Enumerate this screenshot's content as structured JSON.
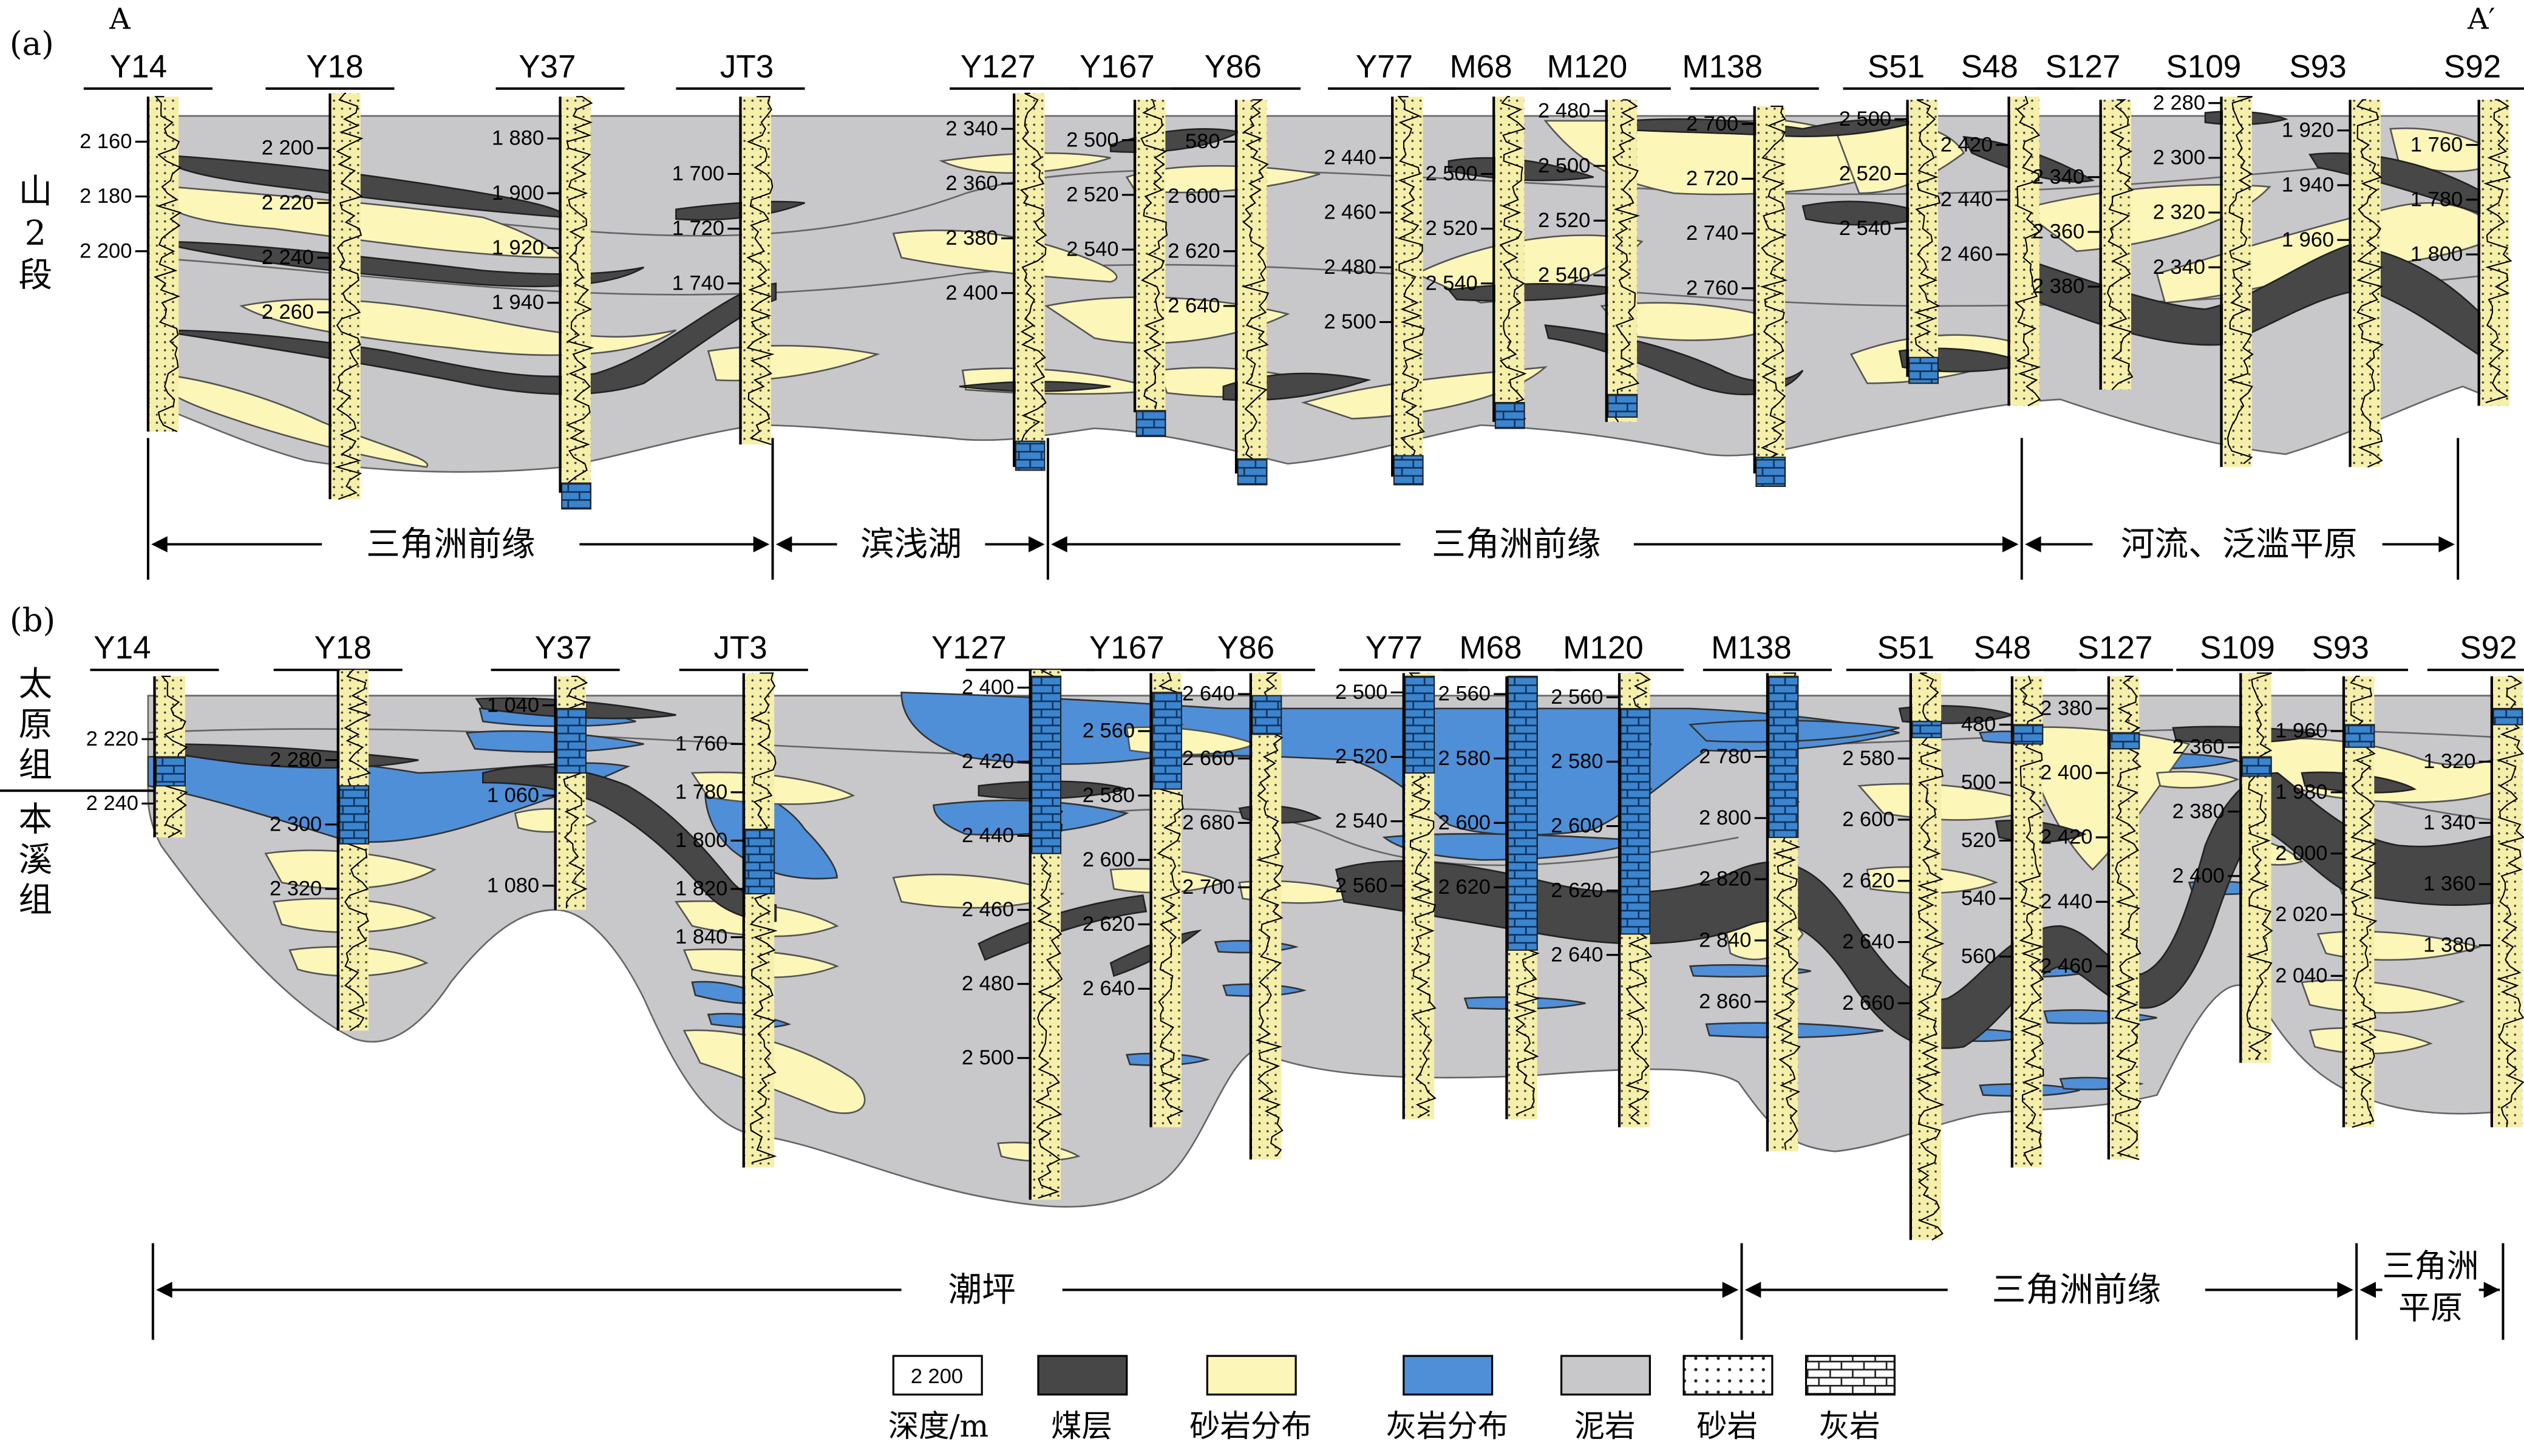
{
  "panel_a": {
    "label": "(a)",
    "section_start": "A",
    "section_end": "A′",
    "unit_label": "山2段",
    "facies": [
      "三角洲前缘",
      "滨浅湖",
      "三角洲前缘",
      "河流、泛滥平原"
    ]
  },
  "panel_b": {
    "label": "(b)",
    "unit_upper": "太原组",
    "unit_lower": "本溪组",
    "facies": [
      "潮坪",
      "三角洲前缘",
      "三角洲平原"
    ]
  },
  "wells": [
    "Y14",
    "Y18",
    "Y37",
    "JT3",
    "Y127",
    "Y167",
    "Y86",
    "Y77",
    "M68",
    "M120",
    "M138",
    "S51",
    "S48",
    "S127",
    "S109",
    "S93",
    "S92"
  ],
  "depth_labels_a": [
    [
      "2 160",
      "2 180",
      "2 200"
    ],
    [
      "2 200",
      "2 220",
      "2 240",
      "2 260"
    ],
    [
      "1 880",
      "1 900",
      "1 920",
      "1 940"
    ],
    [
      "1 700",
      "1 720",
      "1 740"
    ],
    [
      "2 340",
      "2 360",
      "2 380",
      "2 400"
    ],
    [
      "2 500",
      "2 520",
      "2 540"
    ],
    [
      "580",
      "2 600",
      "2 620",
      "2 640"
    ],
    [
      "2 440",
      "2 460",
      "2 480",
      "2 500"
    ],
    [
      "2 500",
      "2 520",
      "2 540"
    ],
    [
      "2 480",
      "2 500",
      "2 520",
      "2 540"
    ],
    [
      "2 700",
      "2 720",
      "2 740",
      "2 760"
    ],
    [
      "2 500",
      "2 520",
      "2 540"
    ],
    [
      "2 420",
      "2 440",
      "2 460"
    ],
    [
      "2 340",
      "2 360",
      "2 380"
    ],
    [
      "2 280",
      "2 300",
      "2 320",
      "2 340"
    ],
    [
      "1 920",
      "1 940",
      "1 960"
    ],
    [
      "1 760",
      "1 780",
      "1 800"
    ]
  ],
  "depth_labels_b": [
    [
      "2 220",
      "2 240"
    ],
    [
      "2 280",
      "2 300",
      "2 320"
    ],
    [
      "1 040",
      "1 060",
      "1 080"
    ],
    [
      "1 760",
      "1 780",
      "1 800",
      "1 820",
      "1 840"
    ],
    [
      "2 400",
      "2 420",
      "2 440",
      "2 460",
      "2 480",
      "2 500"
    ],
    [
      "2 560",
      "2 580",
      "2 600",
      "2 620",
      "2 640"
    ],
    [
      "2 640",
      "2 660",
      "2 680",
      "2 700"
    ],
    [
      "2 500",
      "2 520",
      "2 540",
      "2 560"
    ],
    [
      "2 560",
      "2 580",
      "2 600",
      "2 620"
    ],
    [
      "2 560",
      "2 580",
      "2 600",
      "2 620",
      "2 640"
    ],
    [
      "2 780",
      "2 800",
      "2 820",
      "2 840",
      "2 860"
    ],
    [
      "2 580",
      "2 600",
      "2 620",
      "2 640",
      "2 660"
    ],
    [
      "480",
      "500",
      "520",
      "540",
      "560"
    ],
    [
      "2 380",
      "2 400",
      "2 420",
      "2 440",
      "2 460"
    ],
    [
      "2 360",
      "2 380",
      "2 400"
    ],
    [
      "1 960",
      "1 980",
      "2 000",
      "2 020",
      "2 040"
    ],
    [
      "1 320",
      "1 340",
      "1 360",
      "1 380"
    ]
  ],
  "legend": {
    "items": [
      "深度/m",
      "煤层",
      "砂岩分布",
      "灰岩分布",
      "泥岩",
      "砂岩",
      "灰岩"
    ],
    "sample_depth": "2 200"
  },
  "colors": {
    "mudstone": "#c8c8cb",
    "coal": "#474747",
    "sandstone": "#fcf6b9",
    "limestone": "#4f8fd8",
    "log_fill": "#f6efaa",
    "limestone_column": "#3b85cf"
  }
}
